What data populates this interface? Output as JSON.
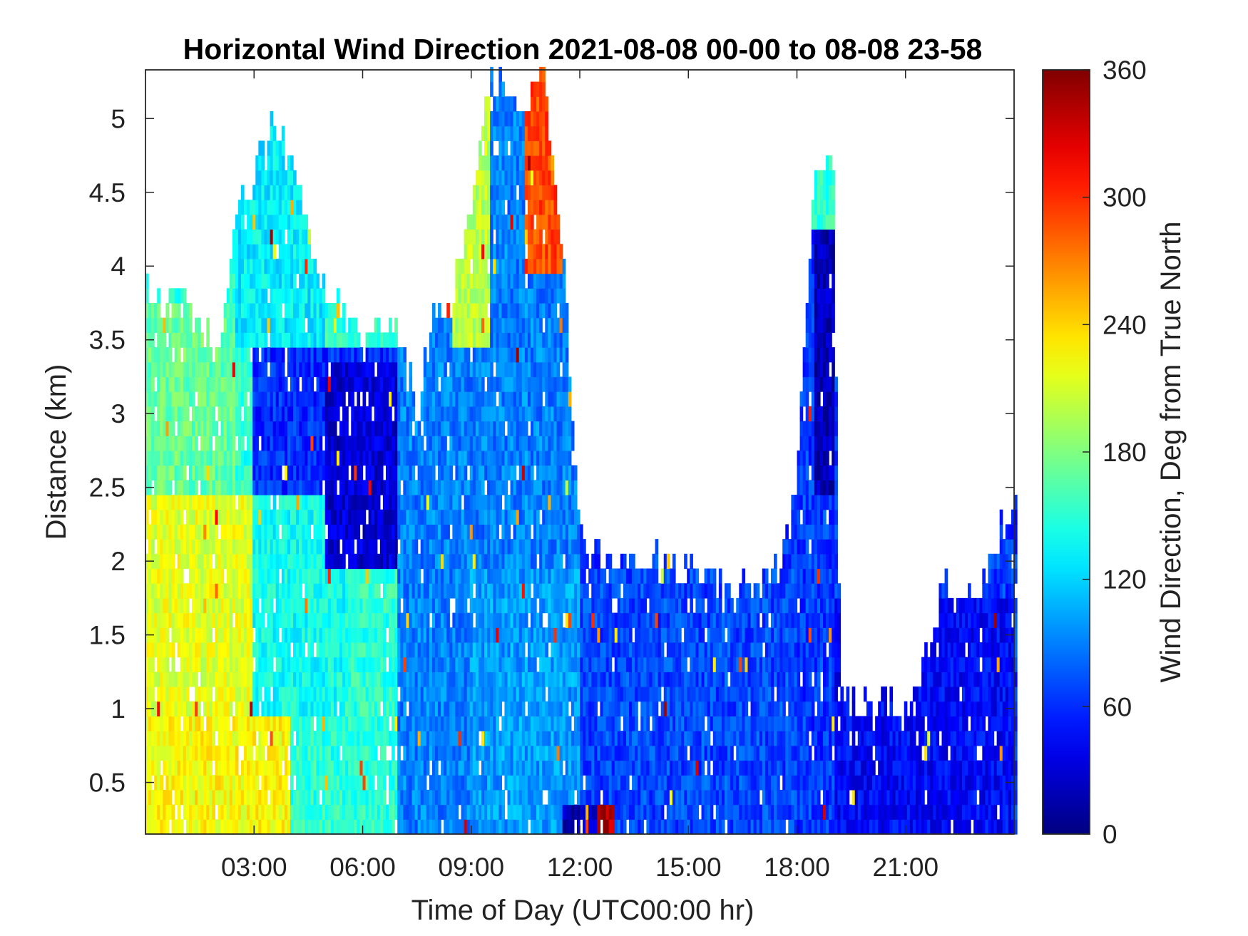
{
  "chart_data": {
    "type": "heatmap",
    "title": "Horizontal Wind Direction 2021-08-08 00-00 to 08-08 23-58",
    "xlabel": "Time of Day (UTC00:00 hr)",
    "ylabel": "Distance (km)",
    "xlim": [
      0,
      24
    ],
    "ylim": [
      0.15,
      5.33
    ],
    "x_ticks": [
      3,
      6,
      9,
      12,
      15,
      18,
      21
    ],
    "x_tick_labels": [
      "03:00",
      "06:00",
      "09:00",
      "12:00",
      "15:00",
      "18:00",
      "21:00"
    ],
    "y_ticks": [
      0.5,
      1,
      1.5,
      2,
      2.5,
      3,
      3.5,
      4,
      4.5,
      5
    ],
    "y_tick_labels": [
      "0.5",
      "1",
      "1.5",
      "2",
      "2.5",
      "3",
      "3.5",
      "4",
      "4.5",
      "5"
    ],
    "colorbar": {
      "label": "Wind Direction, Deg from True North",
      "range": [
        0,
        360
      ],
      "ticks": [
        0,
        60,
        120,
        180,
        240,
        300,
        360
      ],
      "tick_labels": [
        "0",
        "60",
        "120",
        "180",
        "240",
        "300",
        "360"
      ],
      "colormap": "jet"
    },
    "grid": false,
    "data_ceiling_km": [
      [
        0.0,
        3.8
      ],
      [
        1.0,
        3.8
      ],
      [
        2.0,
        3.4
      ],
      [
        2.5,
        4.4
      ],
      [
        3.0,
        4.6
      ],
      [
        3.5,
        5.0
      ],
      [
        4.0,
        4.7
      ],
      [
        5.0,
        3.8
      ],
      [
        6.0,
        3.5
      ],
      [
        7.0,
        3.6
      ],
      [
        7.5,
        3.0
      ],
      [
        8.0,
        3.7
      ],
      [
        8.5,
        3.8
      ],
      [
        9.0,
        4.5
      ],
      [
        9.5,
        5.3
      ],
      [
        10.5,
        5.1
      ],
      [
        11.0,
        5.3
      ],
      [
        11.5,
        4.2
      ],
      [
        12.0,
        2.2
      ],
      [
        13.0,
        2.0
      ],
      [
        14.0,
        2.0
      ],
      [
        15.0,
        1.9
      ],
      [
        16.0,
        1.8
      ],
      [
        17.0,
        1.8
      ],
      [
        17.5,
        2.0
      ],
      [
        18.0,
        2.5
      ],
      [
        18.5,
        4.7
      ],
      [
        19.0,
        4.7
      ],
      [
        19.2,
        1.0
      ],
      [
        20.0,
        1.0
      ],
      [
        21.0,
        1.0
      ],
      [
        21.5,
        1.3
      ],
      [
        22.0,
        1.8
      ],
      [
        23.0,
        1.8
      ],
      [
        24.0,
        2.4
      ]
    ],
    "region_directions_deg": [
      {
        "x": [
          0.0,
          4.0
        ],
        "y": [
          0.15,
          0.9
        ],
        "deg": 225
      },
      {
        "x": [
          0.0,
          3.0
        ],
        "y": [
          0.9,
          2.5
        ],
        "deg": 215
      },
      {
        "x": [
          0.0,
          2.5
        ],
        "y": [
          2.5,
          3.8
        ],
        "deg": 170
      },
      {
        "x": [
          2.5,
          5.5
        ],
        "y": [
          0.9,
          2.5
        ],
        "deg": 140
      },
      {
        "x": [
          3.0,
          7.0
        ],
        "y": [
          2.5,
          3.5
        ],
        "deg": 60
      },
      {
        "x": [
          5.0,
          7.0
        ],
        "y": [
          2.0,
          3.4
        ],
        "deg": 30
      },
      {
        "x": [
          2.5,
          5.0
        ],
        "y": [
          3.5,
          5.0
        ],
        "deg": 130
      },
      {
        "x": [
          8.5,
          9.5
        ],
        "y": [
          3.5,
          5.3
        ],
        "deg": 200
      },
      {
        "x": [
          10.5,
          11.5
        ],
        "y": [
          4.0,
          5.3
        ],
        "deg": 290
      },
      {
        "x": [
          9.0,
          12.0
        ],
        "y": [
          0.15,
          2.0
        ],
        "deg": 100
      },
      {
        "x": [
          11.5,
          12.5
        ],
        "y": [
          0.15,
          0.3
        ],
        "deg": 20
      },
      {
        "x": [
          12.5,
          13.0
        ],
        "y": [
          0.15,
          0.3
        ],
        "deg": 340
      },
      {
        "x": [
          12.0,
          18.0
        ],
        "y": [
          0.15,
          2.0
        ],
        "deg": 70
      },
      {
        "x": [
          18.5,
          19.0
        ],
        "y": [
          2.5,
          4.5
        ],
        "deg": 20
      },
      {
        "x": [
          18.3,
          19.3
        ],
        "y": [
          4.3,
          4.8
        ],
        "deg": 150
      },
      {
        "x": [
          19.0,
          24.0
        ],
        "y": [
          0.15,
          1.8
        ],
        "deg": 45
      }
    ]
  }
}
